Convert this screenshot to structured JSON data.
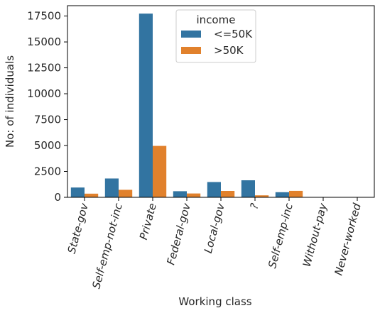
{
  "chart_data": {
    "type": "bar",
    "title": "",
    "xlabel": "Working class",
    "ylabel": "No: of individuals",
    "categories": [
      "State-gov",
      "Self-emp-not-inc",
      "Private",
      "Federal-gov",
      "Local-gov",
      "?",
      "Self-emp-inc",
      "Without-pay",
      "Never-worked"
    ],
    "series": [
      {
        "name": "<=50K",
        "color": "#3274a1",
        "values": [
          945,
          1817,
          17733,
          589,
          1476,
          1645,
          494,
          14,
          7
        ]
      },
      {
        "name": ">50K",
        "color": "#e1812c",
        "values": [
          353,
          724,
          4963,
          371,
          617,
          191,
          622,
          0,
          0
        ]
      }
    ],
    "ylim": [
      0,
      18500
    ],
    "yticks": [
      0,
      2500,
      5000,
      7500,
      10000,
      12500,
      15000,
      17500
    ],
    "legend": {
      "title": "income",
      "position": "top-center"
    },
    "grid": false
  }
}
